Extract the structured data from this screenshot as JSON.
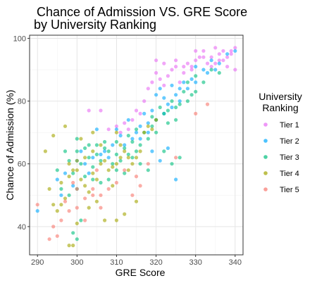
{
  "chart_data": {
    "type": "scatter",
    "title_lines": [
      "Chance of Admission VS. GRE Score",
      " by University Ranking"
    ],
    "xlabel": "GRE Score",
    "ylabel": "Chance of Admission (%)",
    "xlim": [
      288,
      342
    ],
    "ylim": [
      31,
      101
    ],
    "x_ticks": [
      290,
      300,
      310,
      320,
      330,
      340
    ],
    "y_ticks": [
      40,
      60,
      80,
      100
    ],
    "grid": true,
    "legend": {
      "title_lines": [
        "University",
        "Ranking"
      ],
      "placement": "right"
    },
    "series": [
      {
        "name": "Tier 1",
        "color": "#E76BF3",
        "points": [
          [
            340,
            97
          ],
          [
            339,
            96
          ],
          [
            338,
            94
          ],
          [
            337,
            96
          ],
          [
            336,
            95
          ],
          [
            335,
            97
          ],
          [
            334,
            94
          ],
          [
            333,
            92
          ],
          [
            332,
            96
          ],
          [
            331,
            94
          ],
          [
            330,
            93
          ],
          [
            329,
            90
          ],
          [
            328,
            92
          ],
          [
            327,
            89
          ],
          [
            326,
            86
          ],
          [
            325,
            91
          ],
          [
            324,
            90
          ],
          [
            323,
            88
          ],
          [
            322,
            85
          ],
          [
            321,
            87
          ],
          [
            320,
            89
          ],
          [
            319,
            86
          ],
          [
            318,
            84
          ],
          [
            317,
            80
          ],
          [
            316,
            76
          ],
          [
            315,
            77
          ],
          [
            314,
            74
          ],
          [
            313,
            71
          ],
          [
            312,
            73
          ],
          [
            311,
            70
          ],
          [
            310,
            72
          ],
          [
            308,
            71
          ],
          [
            306,
            77
          ],
          [
            303,
            77
          ],
          [
            334,
            91
          ],
          [
            336,
            93
          ],
          [
            338,
            91
          ],
          [
            340,
            90
          ],
          [
            329,
            91
          ],
          [
            327,
            91
          ],
          [
            320,
            93
          ],
          [
            322,
            92
          ],
          [
            325,
            93
          ],
          [
            330,
            96
          ],
          [
            332,
            94
          ],
          [
            335,
            92
          ],
          [
            337,
            93
          ],
          [
            339,
            95
          ]
        ]
      },
      {
        "name": "Tier 2",
        "color": "#00A9FF",
        "points": [
          [
            340,
            96
          ],
          [
            338,
            95
          ],
          [
            336,
            92
          ],
          [
            334,
            93
          ],
          [
            332,
            90
          ],
          [
            330,
            91
          ],
          [
            329,
            87
          ],
          [
            327,
            86
          ],
          [
            326,
            84
          ],
          [
            325,
            82
          ],
          [
            324,
            85
          ],
          [
            323,
            79
          ],
          [
            322,
            81
          ],
          [
            321,
            84
          ],
          [
            320,
            82
          ],
          [
            319,
            77
          ],
          [
            318,
            73
          ],
          [
            317,
            76
          ],
          [
            316,
            72
          ],
          [
            315,
            70
          ],
          [
            314,
            68
          ],
          [
            313,
            74
          ],
          [
            312,
            66
          ],
          [
            311,
            69
          ],
          [
            310,
            71
          ],
          [
            309,
            66
          ],
          [
            308,
            62
          ],
          [
            307,
            64
          ],
          [
            306,
            63
          ],
          [
            305,
            71
          ],
          [
            304,
            62
          ],
          [
            303,
            57
          ],
          [
            302,
            60
          ],
          [
            301,
            64
          ],
          [
            300,
            61
          ],
          [
            299,
            53
          ],
          [
            297,
            57
          ],
          [
            296,
            50
          ],
          [
            295,
            55
          ],
          [
            290,
            45
          ],
          [
            325,
            55
          ],
          [
            323,
            65
          ],
          [
            321,
            61
          ],
          [
            319,
            64
          ],
          [
            328,
            84
          ],
          [
            326,
            80
          ],
          [
            324,
            78
          ],
          [
            322,
            76
          ],
          [
            320,
            74
          ],
          [
            318,
            70
          ],
          [
            316,
            68
          ],
          [
            330,
            86
          ],
          [
            333,
            89
          ],
          [
            335,
            90
          ]
        ]
      },
      {
        "name": "Tier 3",
        "color": "#00BF7D",
        "points": [
          [
            336,
            89
          ],
          [
            334,
            90
          ],
          [
            332,
            86
          ],
          [
            330,
            88
          ],
          [
            328,
            86
          ],
          [
            327,
            83
          ],
          [
            326,
            79
          ],
          [
            325,
            78
          ],
          [
            324,
            80
          ],
          [
            323,
            77
          ],
          [
            322,
            76
          ],
          [
            321,
            78
          ],
          [
            320,
            74
          ],
          [
            319,
            72
          ],
          [
            318,
            68
          ],
          [
            317,
            70
          ],
          [
            316,
            66
          ],
          [
            315,
            64
          ],
          [
            314,
            67
          ],
          [
            313,
            63
          ],
          [
            312,
            65
          ],
          [
            311,
            61
          ],
          [
            310,
            63
          ],
          [
            309,
            60
          ],
          [
            308,
            64
          ],
          [
            307,
            65
          ],
          [
            306,
            61
          ],
          [
            305,
            63
          ],
          [
            304,
            59
          ],
          [
            303,
            62
          ],
          [
            302,
            65
          ],
          [
            301,
            60
          ],
          [
            300,
            64
          ],
          [
            299,
            57
          ],
          [
            298,
            61
          ],
          [
            297,
            64
          ],
          [
            296,
            52
          ],
          [
            295,
            58
          ],
          [
            300,
            36
          ],
          [
            299,
            38
          ],
          [
            301,
            42
          ],
          [
            324,
            60
          ],
          [
            326,
            62
          ],
          [
            322,
            64
          ],
          [
            318,
            58
          ],
          [
            316,
            60
          ],
          [
            314,
            62
          ],
          [
            312,
            57
          ],
          [
            310,
            58
          ],
          [
            308,
            55
          ],
          [
            306,
            54
          ],
          [
            304,
            55
          ],
          [
            302,
            56
          ],
          [
            300,
            52
          ],
          [
            298,
            50
          ],
          [
            328,
            80
          ],
          [
            330,
            83
          ],
          [
            325,
            74
          ],
          [
            320,
            70
          ],
          [
            315,
            71
          ],
          [
            310,
            67
          ],
          [
            305,
            66
          ],
          [
            300,
            68
          ],
          [
            303,
            66
          ],
          [
            307,
            67
          ],
          [
            313,
            69
          ],
          [
            319,
            75
          ],
          [
            323,
            73
          ],
          [
            329,
            82
          ]
        ]
      },
      {
        "name": "Tier 4",
        "color": "#A3A500",
        "points": [
          [
            320,
            74
          ],
          [
            319,
            71
          ],
          [
            318,
            72
          ],
          [
            317,
            70
          ],
          [
            316,
            64
          ],
          [
            315,
            62
          ],
          [
            314,
            60
          ],
          [
            313,
            58
          ],
          [
            312,
            64
          ],
          [
            311,
            62
          ],
          [
            310,
            60
          ],
          [
            309,
            59
          ],
          [
            308,
            58
          ],
          [
            307,
            61
          ],
          [
            306,
            60
          ],
          [
            305,
            55
          ],
          [
            304,
            57
          ],
          [
            303,
            51
          ],
          [
            302,
            53
          ],
          [
            301,
            55
          ],
          [
            300,
            61
          ],
          [
            299,
            58
          ],
          [
            298,
            60
          ],
          [
            297,
            49
          ],
          [
            296,
            47
          ],
          [
            295,
            45
          ],
          [
            294,
            47
          ],
          [
            293,
            52
          ],
          [
            292,
            64
          ],
          [
            298,
            34
          ],
          [
            299,
            34
          ],
          [
            300,
            41
          ],
          [
            303,
            46
          ],
          [
            305,
            48
          ],
          [
            307,
            42
          ],
          [
            310,
            42
          ],
          [
            312,
            44
          ],
          [
            315,
            48
          ],
          [
            309,
            53
          ],
          [
            311,
            66
          ],
          [
            313,
            62
          ],
          [
            306,
            66
          ],
          [
            304,
            64
          ],
          [
            302,
            62
          ],
          [
            300,
            58
          ],
          [
            298,
            56
          ],
          [
            296,
            54
          ],
          [
            294,
            69
          ],
          [
            297,
            72
          ],
          [
            301,
            68
          ],
          [
            304,
            70
          ],
          [
            310,
            70
          ]
        ]
      },
      {
        "name": "Tier 5",
        "color": "#F8766D",
        "points": [
          [
            333,
            79
          ],
          [
            330,
            76
          ],
          [
            325,
            62
          ],
          [
            318,
            60
          ],
          [
            315,
            56
          ],
          [
            312,
            58
          ],
          [
            310,
            54
          ],
          [
            308,
            52
          ],
          [
            306,
            50
          ],
          [
            305,
            58
          ],
          [
            304,
            52
          ],
          [
            302,
            49
          ],
          [
            300,
            52
          ],
          [
            299,
            54
          ],
          [
            298,
            45
          ],
          [
            297,
            48
          ],
          [
            296,
            42
          ],
          [
            295,
            37
          ],
          [
            294,
            40
          ],
          [
            293,
            36
          ],
          [
            290,
            47
          ],
          [
            300,
            46
          ],
          [
            302,
            42
          ],
          [
            304,
            50
          ],
          [
            306,
            46
          ],
          [
            316,
            53
          ],
          [
            314,
            50
          ]
        ]
      }
    ]
  }
}
